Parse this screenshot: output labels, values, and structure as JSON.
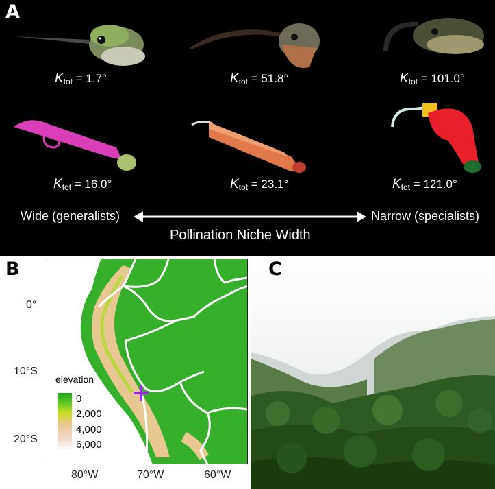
{
  "panel_a": {
    "label": "A",
    "birds": [
      {
        "symbol": "K",
        "sub": "tot",
        "value": "= 1.7°"
      },
      {
        "symbol": "K",
        "sub": "tot",
        "value": "= 51.8°"
      },
      {
        "symbol": "K",
        "sub": "tot",
        "value": "= 101.0°"
      }
    ],
    "flowers": [
      {
        "symbol": "K",
        "sub": "tot",
        "value": "= 16.0°"
      },
      {
        "symbol": "K",
        "sub": "tot",
        "value": "= 23.1°"
      },
      {
        "symbol": "K",
        "sub": "tot",
        "value": "= 121.0°"
      }
    ],
    "wide_label": "Wide (generalists)",
    "narrow_label": "Narrow (specialists)",
    "axis_title": "Pollination Niche Width"
  },
  "panel_b": {
    "label": "B",
    "y_ticks": [
      "0°",
      "10°S",
      "20°S"
    ],
    "x_ticks": [
      "80°W",
      "70°W",
      "60°W"
    ],
    "legend": {
      "title": "elevation",
      "values": [
        "0",
        "2,000",
        "4,000",
        "6,000"
      ]
    },
    "marker_color": "#9b30d9"
  },
  "panel_c": {
    "label": "C"
  }
}
